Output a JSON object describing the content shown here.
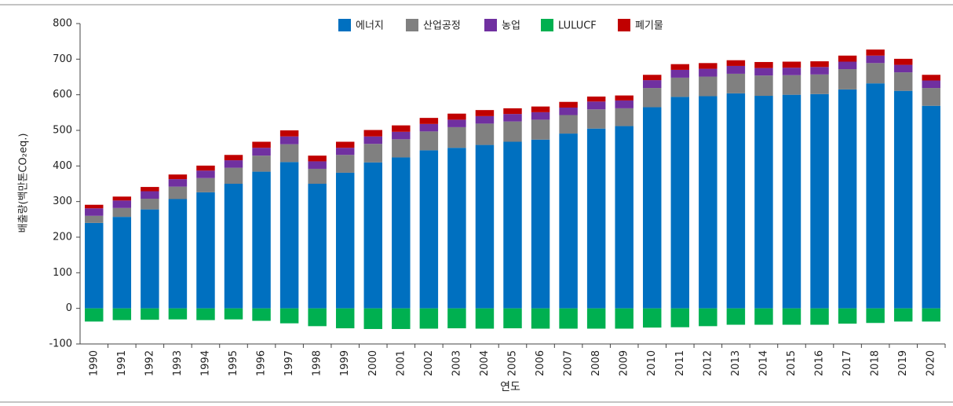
{
  "chart_data": {
    "type": "stacked_bar",
    "y_label": "배출량(백만톤CO₂eq.)",
    "x_label": "연도",
    "categories": [
      "1990",
      "1991",
      "1992",
      "1993",
      "1994",
      "1995",
      "1996",
      "1997",
      "1998",
      "1999",
      "2000",
      "2001",
      "2002",
      "2003",
      "2004",
      "2005",
      "2006",
      "2007",
      "2008",
      "2009",
      "2010",
      "2011",
      "2012",
      "2013",
      "2014",
      "2015",
      "2016",
      "2017",
      "2018",
      "2019",
      "2020"
    ],
    "series": [
      {
        "name": "에너지",
        "color": "#0070c0",
        "values": [
          240,
          257,
          278,
          307,
          326,
          350,
          384,
          411,
          350,
          381,
          410,
          424,
          444,
          451,
          459,
          468,
          474,
          491,
          505,
          512,
          565,
          594,
          596,
          604,
          597,
          600,
          602,
          615,
          632,
          611,
          569
        ]
      },
      {
        "name": "산업공정",
        "color": "#808080",
        "values": [
          20,
          25,
          30,
          35,
          40,
          45,
          45,
          50,
          42,
          50,
          52,
          51,
          53,
          58,
          60,
          57,
          56,
          52,
          54,
          50,
          54,
          54,
          55,
          55,
          57,
          55,
          55,
          57,
          57,
          52,
          50
        ]
      },
      {
        "name": "농업",
        "color": "#7030a0",
        "values": [
          21,
          21,
          21,
          21,
          21,
          21,
          22,
          22,
          21,
          20,
          21,
          21,
          21,
          21,
          21,
          21,
          21,
          21,
          22,
          22,
          22,
          22,
          22,
          22,
          21,
          21,
          21,
          21,
          21,
          21,
          21
        ]
      },
      {
        "name": "LULUCF",
        "color": "#00b050",
        "values": [
          -37,
          -33,
          -32,
          -31,
          -33,
          -31,
          -35,
          -42,
          -50,
          -56,
          -58,
          -58,
          -57,
          -56,
          -57,
          -56,
          -57,
          -57,
          -57,
          -57,
          -54,
          -53,
          -50,
          -46,
          -46,
          -46,
          -46,
          -43,
          -41,
          -37,
          -37
        ]
      },
      {
        "name": "폐기물",
        "color": "#c00000",
        "values": [
          10,
          11,
          12,
          13,
          14,
          15,
          17,
          17,
          16,
          17,
          18,
          18,
          17,
          17,
          17,
          16,
          16,
          16,
          14,
          14,
          15,
          16,
          16,
          16,
          17,
          17,
          16,
          17,
          17,
          17,
          16
        ]
      }
    ],
    "ylim": [
      -100,
      800
    ],
    "yticks": [
      -100,
      0,
      100,
      200,
      300,
      400,
      500,
      600,
      700,
      800
    ],
    "grid": false,
    "legend": "top"
  }
}
